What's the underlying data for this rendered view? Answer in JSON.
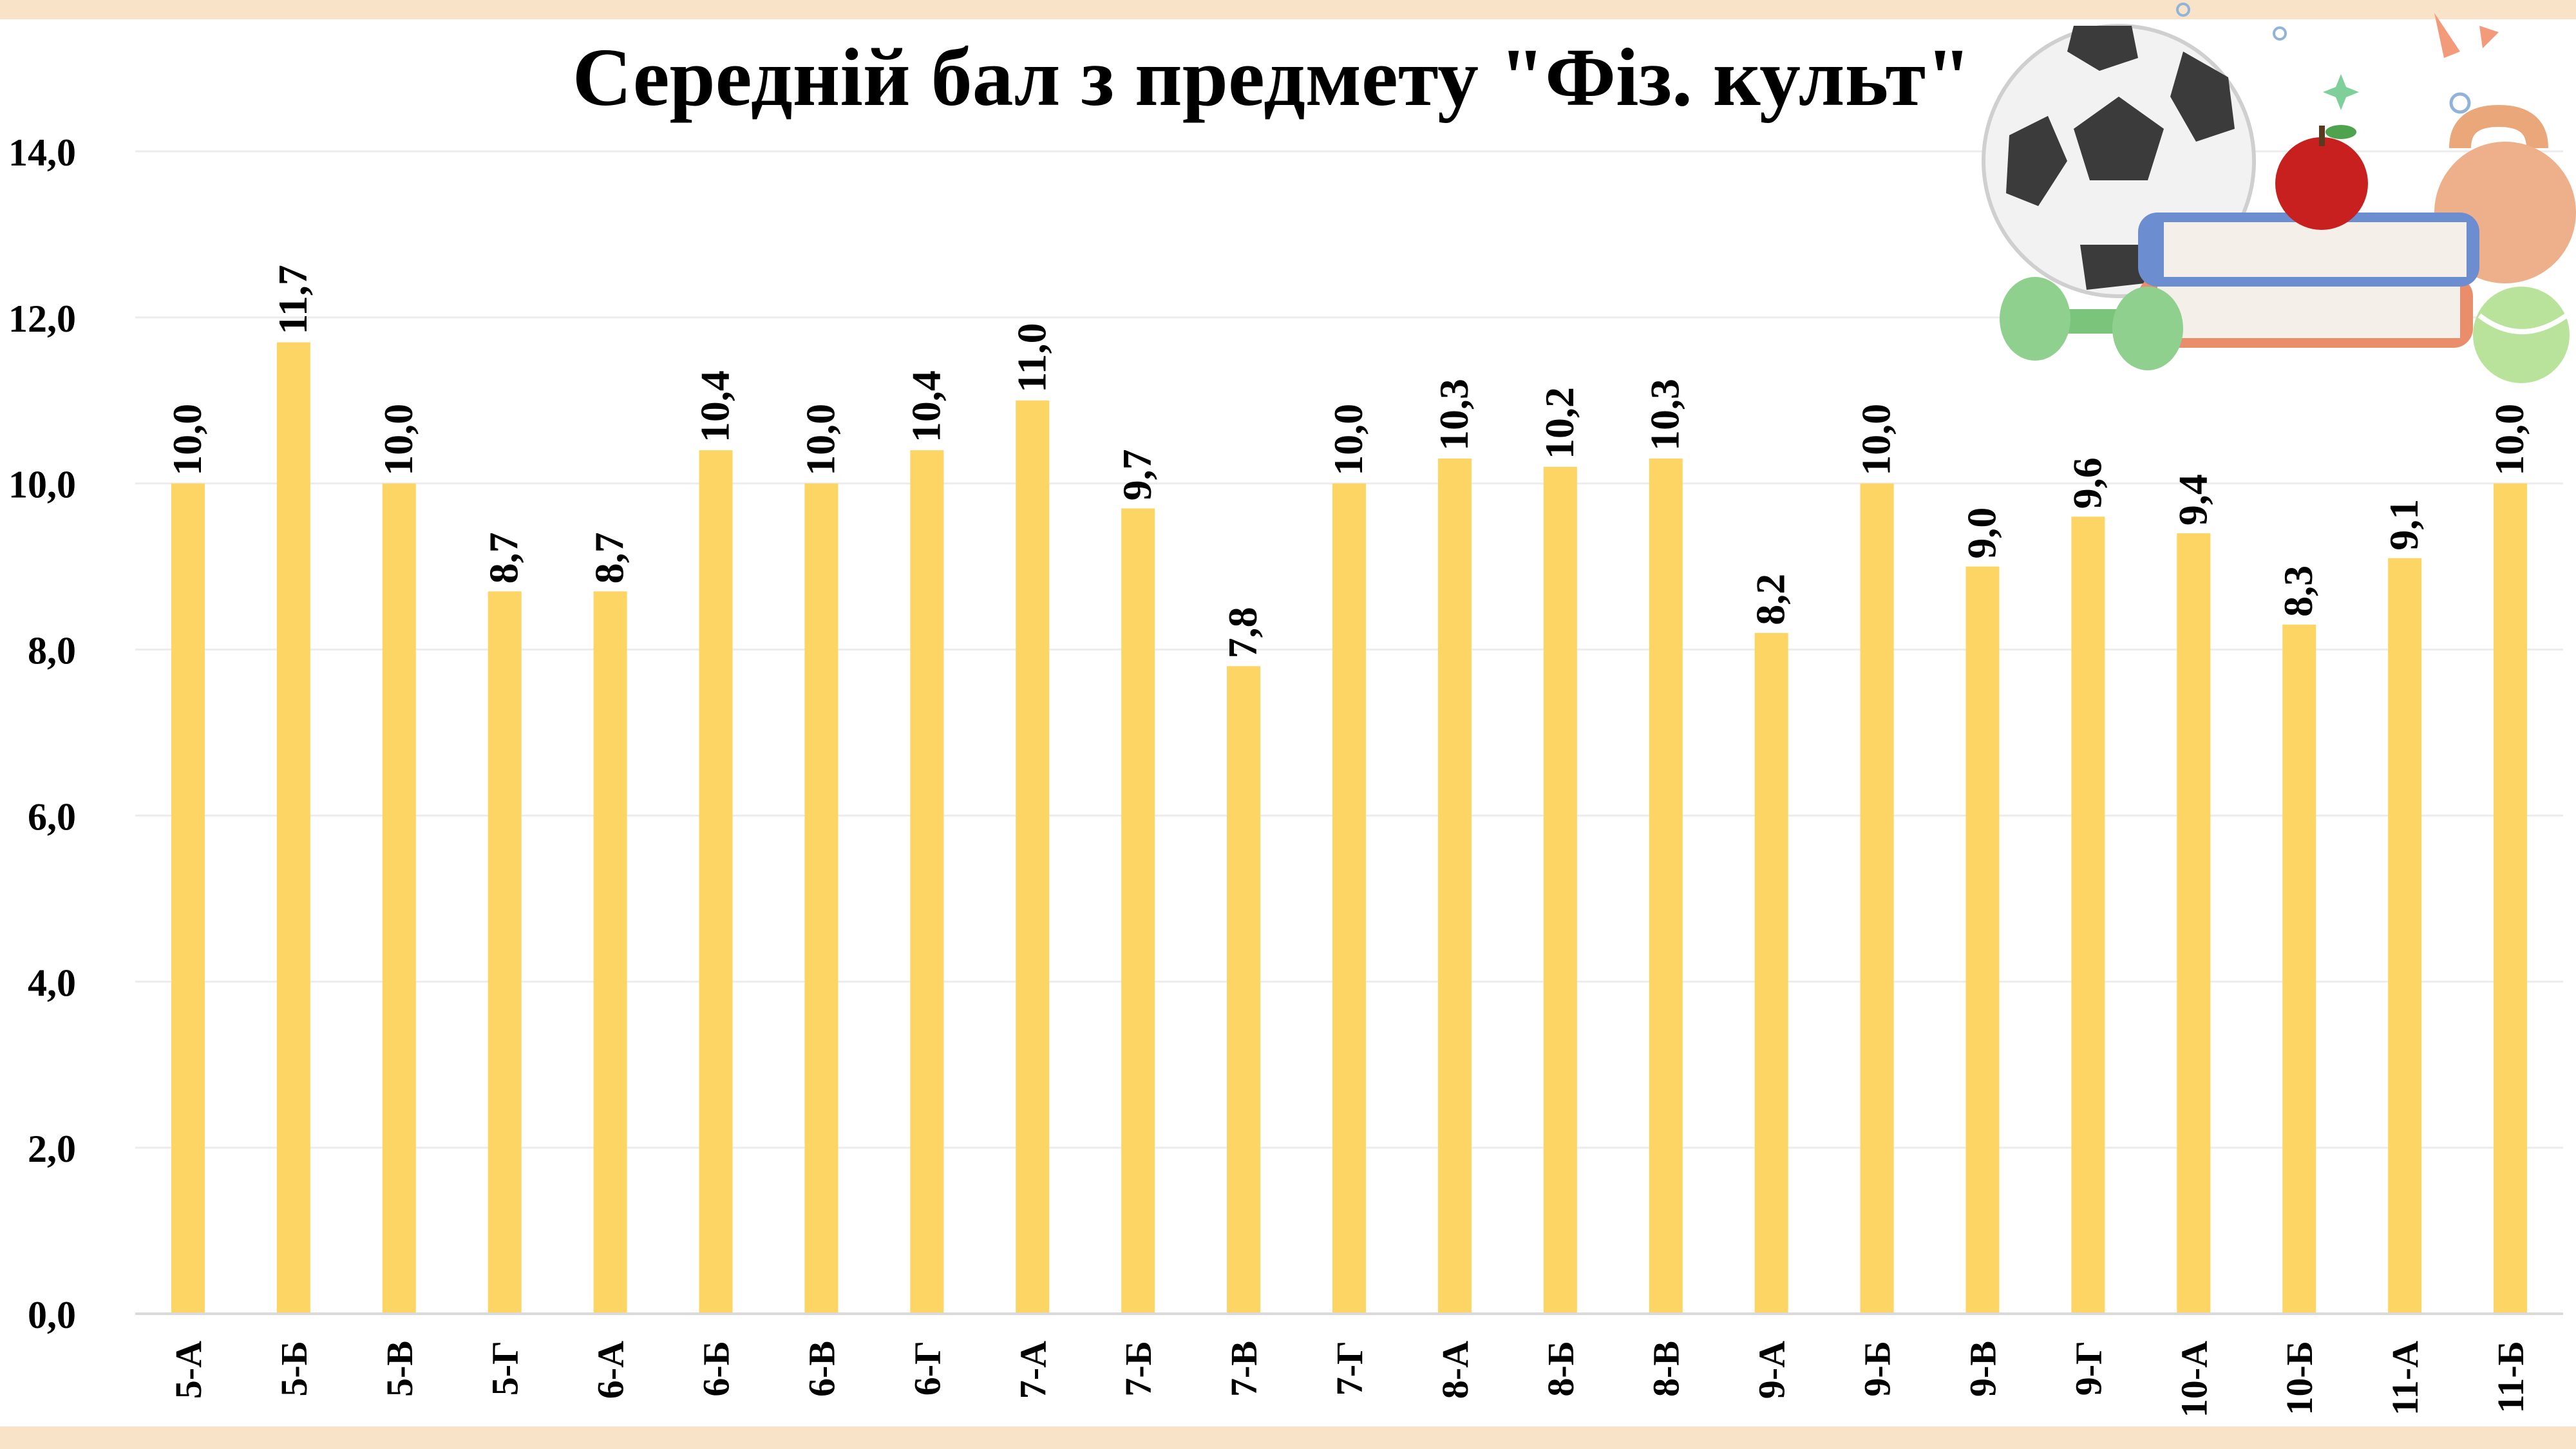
{
  "chart_data": {
    "type": "bar",
    "title": "Середній бал з предмету \"Фіз. культ\"",
    "xlabel": "",
    "ylabel": "",
    "ylim": [
      0,
      14
    ],
    "y_ticks": [
      "0,0",
      "2,0",
      "4,0",
      "6,0",
      "8,0",
      "10,0",
      "12,0",
      "14,0"
    ],
    "y_tick_values": [
      0,
      2,
      4,
      6,
      8,
      10,
      12,
      14
    ],
    "grid": true,
    "legend": "none",
    "bar_color": "#fcd565",
    "categories": [
      "5-А",
      "5-Б",
      "5-В",
      "5-Г",
      "6-А",
      "6-Б",
      "6-В",
      "6-Г",
      "7-А",
      "7-Б",
      "7-В",
      "7-Г",
      "8-А",
      "8-Б",
      "8-В",
      "9-А",
      "9-Б",
      "9-В",
      "9-Г",
      "10-А",
      "10-Б",
      "11-А",
      "11-Б"
    ],
    "values": [
      10.0,
      11.7,
      10.0,
      8.7,
      8.7,
      10.4,
      10.0,
      10.4,
      11.0,
      9.7,
      7.8,
      10.0,
      10.3,
      10.2,
      10.3,
      8.2,
      10.0,
      9.0,
      9.6,
      9.4,
      8.3,
      9.1,
      10.0
    ],
    "value_labels": [
      "10,0",
      "11,7",
      "10,0",
      "8,7",
      "8,7",
      "10,4",
      "10,0",
      "10,4",
      "11,0",
      "9,7",
      "7,8",
      "10,0",
      "10,3",
      "10,2",
      "10,3",
      "8,2",
      "10,0",
      "9,0",
      "9,6",
      "9,4",
      "8,3",
      "9,1",
      "10,0"
    ]
  },
  "illustration": {
    "items": [
      "soccer-ball-icon",
      "books-icon",
      "apple-icon",
      "dumbbell-icon",
      "kettlebell-icon",
      "tennis-ball-icon"
    ]
  }
}
